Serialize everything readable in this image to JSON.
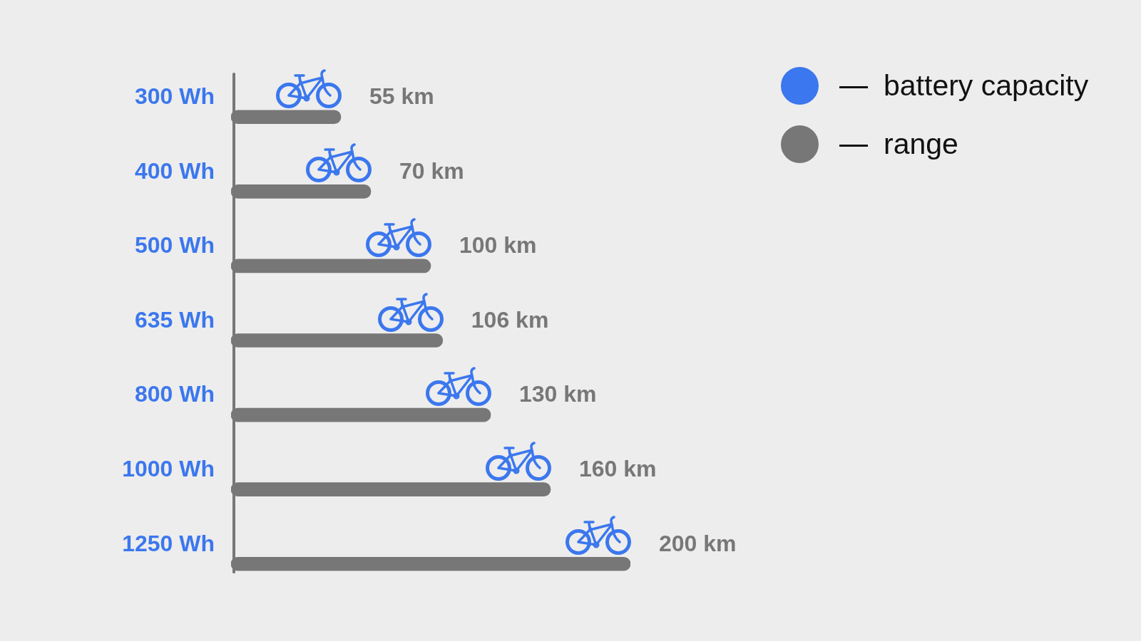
{
  "chart_data": {
    "type": "bar",
    "orientation": "horizontal",
    "categories": [
      "300 Wh",
      "400 Wh",
      "500 Wh",
      "635 Wh",
      "800 Wh",
      "1000 Wh",
      "1250 Wh"
    ],
    "series": [
      {
        "name": "range",
        "color": "#777777",
        "values": [
          55,
          70,
          100,
          106,
          130,
          160,
          200
        ],
        "value_labels": [
          "55 km",
          "70 km",
          "100 km",
          "106 km",
          "130 km",
          "160 km",
          "200 km"
        ]
      }
    ],
    "annotations": [
      "battery capacity"
    ],
    "tick_labels": "y",
    "grid": false,
    "legend": "top right"
  }
}
